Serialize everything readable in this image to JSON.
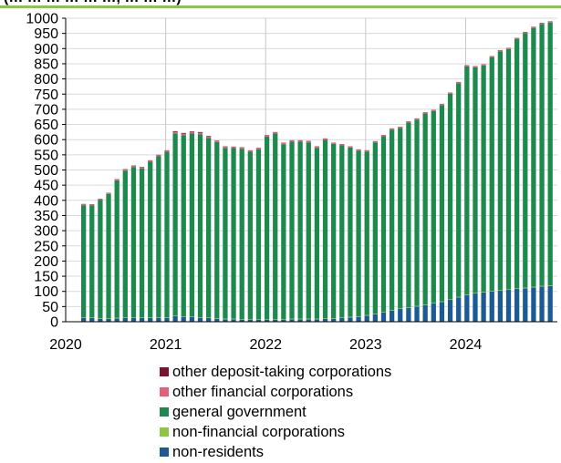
{
  "header": {
    "cut_title": "(… … … … … …, … … …)"
  },
  "chart_data": {
    "type": "bar",
    "stacked": true,
    "x_tick_labels": [
      "2020",
      "2021",
      "2022",
      "2023",
      "2024"
    ],
    "x_start": 2020.0,
    "x_end": 2024.917,
    "ylim": [
      0,
      1000
    ],
    "yticks": [
      0,
      50,
      100,
      150,
      200,
      250,
      300,
      350,
      400,
      450,
      500,
      550,
      600,
      650,
      700,
      750,
      800,
      850,
      900,
      950,
      1000
    ],
    "grid": true,
    "legend": {
      "position": "bottom"
    },
    "series_order_bottom_to_top": [
      "non-residents",
      "non-financial corporations",
      "general government",
      "other financial corporations",
      "other deposit-taking corporations"
    ],
    "legend_order": [
      "other deposit-taking corporations",
      "other financial corporations",
      "general government",
      "non-financial corporations",
      "non-residents"
    ],
    "colors": {
      "other deposit-taking corporations": "#7a1230",
      "other financial corporations": "#e2607a",
      "general government": "#1c8a4d",
      "non-financial corporations": "#8dc63f",
      "non-residents": "#1c5a96"
    },
    "months": [
      "2020-03",
      "2020-04",
      "2020-05",
      "2020-06",
      "2020-07",
      "2020-08",
      "2020-09",
      "2020-10",
      "2020-11",
      "2020-12",
      "2021-01",
      "2021-02",
      "2021-03",
      "2021-04",
      "2021-05",
      "2021-06",
      "2021-07",
      "2021-08",
      "2021-09",
      "2021-10",
      "2021-11",
      "2021-12",
      "2022-01",
      "2022-02",
      "2022-03",
      "2022-04",
      "2022-05",
      "2022-06",
      "2022-07",
      "2022-08",
      "2022-09",
      "2022-10",
      "2022-11",
      "2022-12",
      "2023-01",
      "2023-02",
      "2023-03",
      "2023-04",
      "2023-05",
      "2023-06",
      "2023-07",
      "2023-08",
      "2023-09",
      "2023-10",
      "2023-11",
      "2023-12",
      "2024-01",
      "2024-02",
      "2024-03",
      "2024-04",
      "2024-05",
      "2024-06",
      "2024-07",
      "2024-08",
      "2024-09",
      "2024-10",
      "2024-11"
    ],
    "totals": [
      388,
      387,
      405,
      425,
      470,
      503,
      515,
      510,
      532,
      550,
      565,
      628,
      622,
      627,
      625,
      612,
      597,
      578,
      577,
      575,
      565,
      573,
      615,
      625,
      590,
      598,
      598,
      596,
      578,
      604,
      590,
      585,
      578,
      568,
      565,
      595,
      615,
      637,
      642,
      660,
      670,
      690,
      698,
      718,
      755,
      790,
      845,
      842,
      848,
      875,
      895,
      902,
      935,
      955,
      972,
      985,
      990
    ],
    "non_residents": [
      12,
      12,
      10,
      10,
      11,
      12,
      12,
      12,
      12,
      13,
      13,
      18,
      16,
      15,
      13,
      12,
      10,
      8,
      8,
      7,
      6,
      6,
      6,
      6,
      7,
      8,
      8,
      8,
      8,
      9,
      10,
      12,
      14,
      16,
      20,
      25,
      30,
      37,
      42,
      46,
      50,
      55,
      60,
      65,
      72,
      80,
      88,
      93,
      97,
      100,
      102,
      105,
      108,
      110,
      113,
      116,
      118
    ],
    "non_financial_corporations": [
      2,
      2,
      2,
      2,
      2,
      2,
      2,
      2,
      2,
      2,
      2,
      2,
      2,
      2,
      2,
      2,
      2,
      2,
      2,
      2,
      2,
      2,
      2,
      2,
      2,
      2,
      2,
      2,
      2,
      2,
      2,
      2,
      2,
      2,
      2,
      2,
      2,
      2,
      2,
      2,
      2,
      2,
      2,
      2,
      2,
      2,
      2,
      2,
      2,
      2,
      2,
      2,
      2,
      2,
      2,
      2,
      2
    ],
    "other_financial_corporations": [
      3,
      3,
      3,
      3,
      3,
      4,
      4,
      4,
      4,
      4,
      4,
      5,
      5,
      5,
      5,
      5,
      4,
      4,
      4,
      4,
      4,
      4,
      4,
      4,
      4,
      4,
      4,
      4,
      4,
      4,
      3,
      3,
      3,
      3,
      3,
      3,
      3,
      3,
      3,
      3,
      3,
      3,
      3,
      3,
      3,
      3,
      3,
      3,
      3,
      3,
      3,
      3,
      3,
      3,
      3,
      3,
      3
    ],
    "other_deposit_taking_corporations": [
      1,
      1,
      1,
      1,
      1,
      1,
      1,
      1,
      1,
      1,
      1,
      2,
      2,
      2,
      2,
      2,
      1,
      1,
      1,
      1,
      1,
      1,
      1,
      1,
      1,
      1,
      1,
      1,
      1,
      1,
      1,
      1,
      1,
      1,
      1,
      1,
      1,
      1,
      1,
      1,
      1,
      1,
      1,
      1,
      1,
      1,
      1,
      1,
      1,
      1,
      1,
      1,
      1,
      1,
      1,
      1,
      1
    ]
  }
}
